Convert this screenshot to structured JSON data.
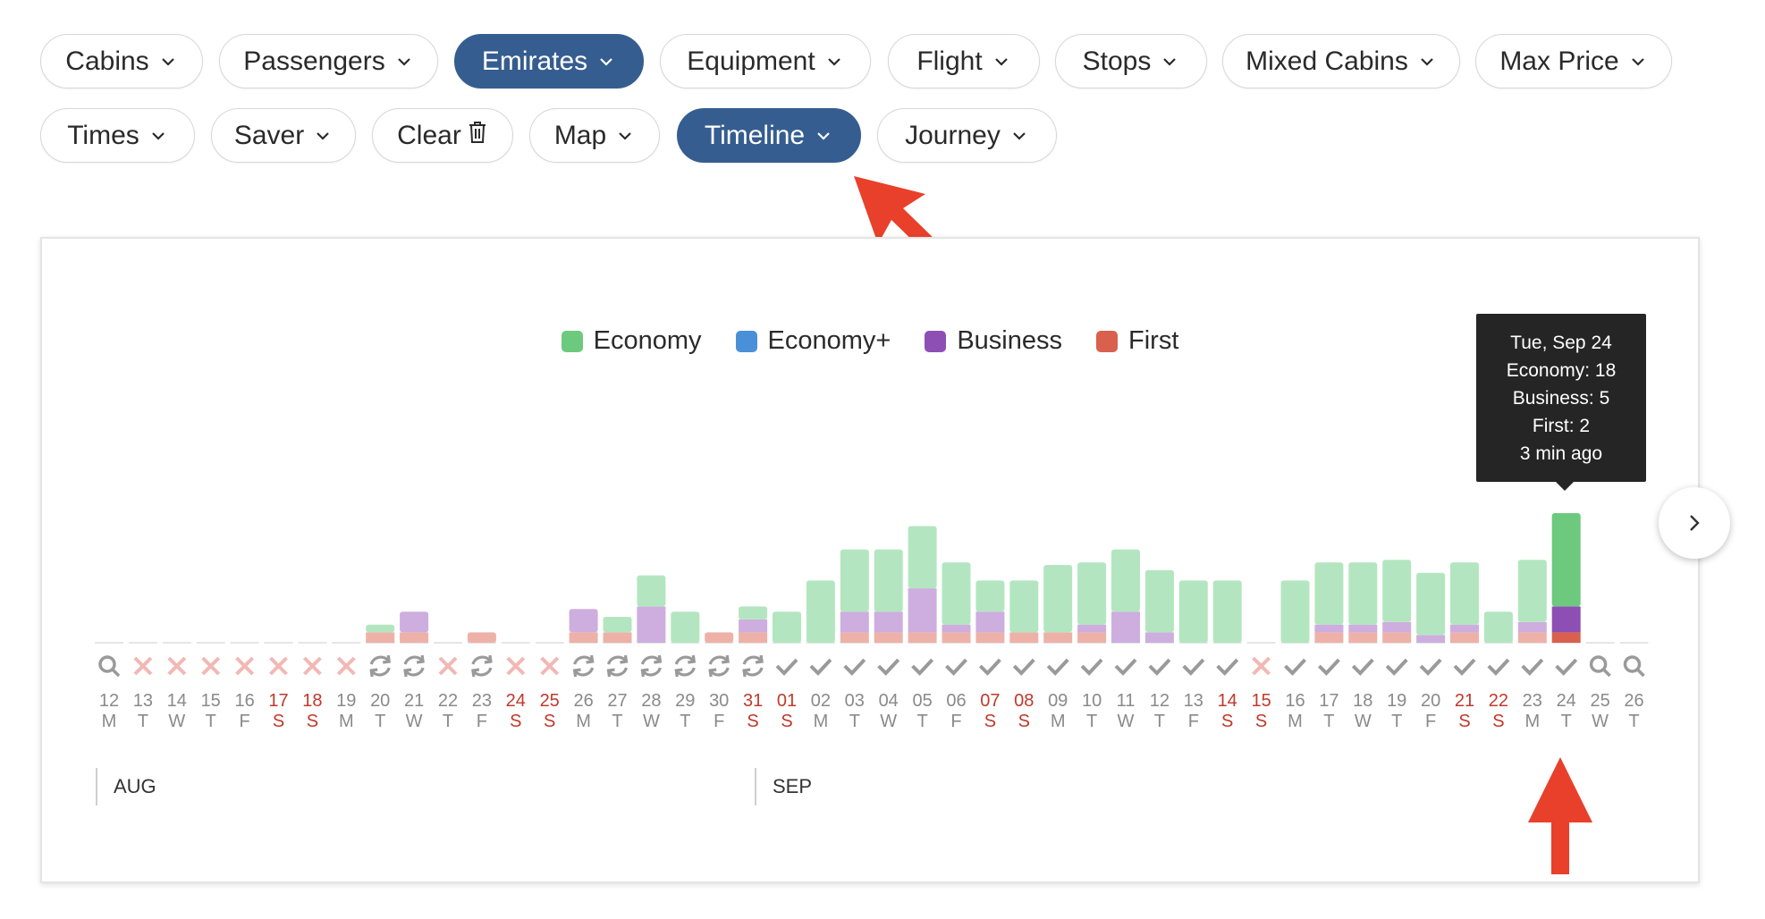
{
  "filters": {
    "row1": [
      {
        "label": "Cabins",
        "active": false
      },
      {
        "label": "Passengers",
        "active": false
      },
      {
        "label": "Emirates",
        "active": true
      },
      {
        "label": "Equipment",
        "active": false
      },
      {
        "label": "Flight",
        "active": false
      },
      {
        "label": "Stops",
        "active": false
      },
      {
        "label": "Mixed Cabins",
        "active": false
      },
      {
        "label": "Max Price",
        "active": false
      }
    ],
    "row2": [
      {
        "label": "Times",
        "active": false,
        "icon": "chevron-down-icon"
      },
      {
        "label": "Saver",
        "active": false,
        "icon": "chevron-down-icon"
      },
      {
        "label": "Clear",
        "active": false,
        "icon": "trash-icon"
      },
      {
        "label": "Map",
        "active": false,
        "icon": "chevron-down-icon"
      },
      {
        "label": "Timeline",
        "active": true,
        "icon": "chevron-down-icon"
      },
      {
        "label": "Journey",
        "active": false,
        "icon": "chevron-down-icon"
      }
    ]
  },
  "colors": {
    "economy": "#6cc97e",
    "economy_light": "#b3e6c0",
    "economy_plus": "#4a90d9",
    "business": "#8e4fb5",
    "business_light": "#cdaedf",
    "first": "#d9604d",
    "first_light": "#eeb1a8",
    "active_pill": "#355d8f",
    "weekend_red": "#c0392b",
    "annotation_arrow": "#e8402a"
  },
  "legend": [
    {
      "label": "Economy",
      "color": "#6cc97e"
    },
    {
      "label": "Economy+",
      "color": "#4a90d9"
    },
    {
      "label": "Business",
      "color": "#8e4fb5"
    },
    {
      "label": "First",
      "color": "#d9604d"
    }
  ],
  "tooltip": {
    "date": "Tue, Sep 24",
    "economy": "Economy: 18",
    "business": "Business: 5",
    "first": "First: 2",
    "updated": "3 min ago"
  },
  "months": [
    {
      "label": "AUG"
    },
    {
      "label": "SEP"
    }
  ],
  "chart_data": {
    "type": "bar",
    "series_names": [
      "Economy",
      "Business",
      "First"
    ],
    "highlighted_date": "24",
    "days": [
      {
        "date": "12",
        "dow": "M",
        "weekend": false,
        "status": "search",
        "economy": 0,
        "business": 0,
        "first": 0
      },
      {
        "date": "13",
        "dow": "T",
        "weekend": false,
        "status": "none",
        "economy": 0,
        "business": 0,
        "first": 0
      },
      {
        "date": "14",
        "dow": "W",
        "weekend": false,
        "status": "none",
        "economy": 0,
        "business": 0,
        "first": 0
      },
      {
        "date": "15",
        "dow": "T",
        "weekend": false,
        "status": "none",
        "economy": 0,
        "business": 0,
        "first": 0
      },
      {
        "date": "16",
        "dow": "F",
        "weekend": false,
        "status": "none",
        "economy": 0,
        "business": 0,
        "first": 0
      },
      {
        "date": "17",
        "dow": "S",
        "weekend": true,
        "status": "none",
        "economy": 0,
        "business": 0,
        "first": 0
      },
      {
        "date": "18",
        "dow": "S",
        "weekend": true,
        "status": "none",
        "economy": 0,
        "business": 0,
        "first": 0
      },
      {
        "date": "19",
        "dow": "M",
        "weekend": false,
        "status": "none",
        "economy": 0,
        "business": 0,
        "first": 0
      },
      {
        "date": "20",
        "dow": "T",
        "weekend": false,
        "status": "refresh",
        "economy": 1.5,
        "business": 0,
        "first": 2
      },
      {
        "date": "21",
        "dow": "W",
        "weekend": false,
        "status": "refresh",
        "economy": 0,
        "business": 4,
        "first": 2
      },
      {
        "date": "22",
        "dow": "T",
        "weekend": false,
        "status": "none",
        "economy": 0,
        "business": 0,
        "first": 0
      },
      {
        "date": "23",
        "dow": "F",
        "weekend": false,
        "status": "refresh",
        "economy": 0,
        "business": 0,
        "first": 2
      },
      {
        "date": "24",
        "dow": "S",
        "weekend": true,
        "status": "none",
        "economy": 0,
        "business": 0,
        "first": 0
      },
      {
        "date": "25",
        "dow": "S",
        "weekend": true,
        "status": "none",
        "economy": 0,
        "business": 0,
        "first": 0
      },
      {
        "date": "26",
        "dow": "M",
        "weekend": false,
        "status": "refresh",
        "economy": 0,
        "business": 4.5,
        "first": 2
      },
      {
        "date": "27",
        "dow": "T",
        "weekend": false,
        "status": "refresh",
        "economy": 3,
        "business": 0,
        "first": 2
      },
      {
        "date": "28",
        "dow": "W",
        "weekend": false,
        "status": "refresh",
        "economy": 6,
        "business": 7,
        "first": 0
      },
      {
        "date": "29",
        "dow": "T",
        "weekend": false,
        "status": "refresh",
        "economy": 6,
        "business": 0,
        "first": 0
      },
      {
        "date": "30",
        "dow": "F",
        "weekend": false,
        "status": "refresh",
        "economy": 0,
        "business": 0,
        "first": 2
      },
      {
        "date": "31",
        "dow": "S",
        "weekend": true,
        "status": "refresh",
        "economy": 2.5,
        "business": 2.5,
        "first": 2
      },
      {
        "date": "01",
        "dow": "S",
        "weekend": true,
        "status": "check",
        "economy": 6,
        "business": 0,
        "first": 0
      },
      {
        "date": "02",
        "dow": "M",
        "weekend": false,
        "status": "check",
        "economy": 12,
        "business": 0,
        "first": 0
      },
      {
        "date": "03",
        "dow": "T",
        "weekend": false,
        "status": "check",
        "economy": 12,
        "business": 4,
        "first": 2
      },
      {
        "date": "04",
        "dow": "W",
        "weekend": false,
        "status": "check",
        "economy": 12,
        "business": 4,
        "first": 2
      },
      {
        "date": "05",
        "dow": "T",
        "weekend": false,
        "status": "check",
        "economy": 12,
        "business": 8.5,
        "first": 2
      },
      {
        "date": "06",
        "dow": "F",
        "weekend": false,
        "status": "check",
        "economy": 12,
        "business": 1.5,
        "first": 2
      },
      {
        "date": "07",
        "dow": "S",
        "weekend": true,
        "status": "check",
        "economy": 6,
        "business": 4,
        "first": 2
      },
      {
        "date": "08",
        "dow": "S",
        "weekend": true,
        "status": "check",
        "economy": 10,
        "business": 0,
        "first": 2
      },
      {
        "date": "09",
        "dow": "M",
        "weekend": false,
        "status": "check",
        "economy": 13,
        "business": 0,
        "first": 2
      },
      {
        "date": "10",
        "dow": "T",
        "weekend": false,
        "status": "check",
        "economy": 12,
        "business": 1.5,
        "first": 2
      },
      {
        "date": "11",
        "dow": "W",
        "weekend": false,
        "status": "check",
        "economy": 12,
        "business": 6,
        "first": 0
      },
      {
        "date": "12",
        "dow": "T",
        "weekend": false,
        "status": "check",
        "economy": 12,
        "business": 2,
        "first": 0
      },
      {
        "date": "13",
        "dow": "F",
        "weekend": false,
        "status": "check",
        "economy": 12,
        "business": 0,
        "first": 0
      },
      {
        "date": "14",
        "dow": "S",
        "weekend": true,
        "status": "check",
        "economy": 12,
        "business": 0,
        "first": 0
      },
      {
        "date": "15",
        "dow": "S",
        "weekend": true,
        "status": "none",
        "economy": 0,
        "business": 0,
        "first": 0
      },
      {
        "date": "16",
        "dow": "M",
        "weekend": false,
        "status": "check",
        "economy": 12,
        "business": 0,
        "first": 0
      },
      {
        "date": "17",
        "dow": "T",
        "weekend": false,
        "status": "check",
        "economy": 12,
        "business": 1.5,
        "first": 2
      },
      {
        "date": "18",
        "dow": "W",
        "weekend": false,
        "status": "check",
        "economy": 12,
        "business": 1.5,
        "first": 2
      },
      {
        "date": "19",
        "dow": "T",
        "weekend": false,
        "status": "check",
        "economy": 12,
        "business": 2,
        "first": 2
      },
      {
        "date": "20",
        "dow": "F",
        "weekend": false,
        "status": "check",
        "economy": 12,
        "business": 1.5,
        "first": 0
      },
      {
        "date": "21",
        "dow": "S",
        "weekend": true,
        "status": "check",
        "economy": 12,
        "business": 1.5,
        "first": 2
      },
      {
        "date": "22",
        "dow": "S",
        "weekend": true,
        "status": "check",
        "economy": 6,
        "business": 0,
        "first": 0
      },
      {
        "date": "23",
        "dow": "M",
        "weekend": false,
        "status": "check",
        "economy": 12,
        "business": 2,
        "first": 2
      },
      {
        "date": "24",
        "dow": "T",
        "weekend": false,
        "status": "check",
        "economy": 18,
        "business": 5,
        "first": 2
      },
      {
        "date": "25",
        "dow": "W",
        "weekend": false,
        "status": "search",
        "economy": 0,
        "business": 0,
        "first": 0
      },
      {
        "date": "26",
        "dow": "T",
        "weekend": false,
        "status": "search",
        "economy": 0,
        "business": 0,
        "first": 0
      }
    ]
  }
}
